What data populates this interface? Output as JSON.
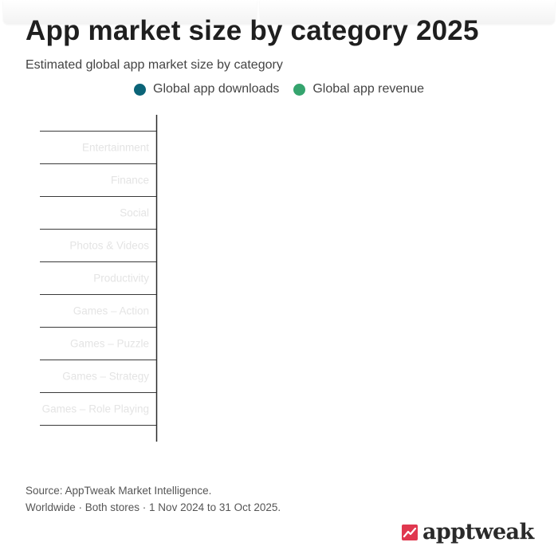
{
  "page": {
    "title": "App market size by category 2025",
    "subtitle": "Estimated global app market size by category"
  },
  "legend": [
    {
      "label": "Global app downloads",
      "color": "#0b6478"
    },
    {
      "label": "Global app revenue",
      "color": "#35a46e"
    }
  ],
  "chart_data": {
    "type": "bar",
    "orientation": "horizontal",
    "title": "App market size by category 2025",
    "subtitle": "Estimated global app market size by category",
    "categories": [
      "Entertainment",
      "Finance",
      "Social",
      "Photos & Videos",
      "Productivity",
      "Games – Action",
      "Games – Puzzle",
      "Games – Strategy",
      "Games – Role Playing"
    ],
    "series": [
      {
        "name": "Global app downloads",
        "color": "#0b6478",
        "values": [
          null,
          null,
          null,
          null,
          null,
          null,
          null,
          null,
          null
        ]
      },
      {
        "name": "Global app revenue",
        "color": "#35a46e",
        "values": [
          null,
          null,
          null,
          null,
          null,
          null,
          null,
          null,
          null
        ]
      }
    ],
    "grid": true,
    "legend_position": "top-center"
  },
  "footer": {
    "source": "Source: AppTweak Market Intelligence.",
    "scope": "Worldwide · Both stores · 1 Nov 2024 to 31 Oct 2025."
  },
  "logo": {
    "text": "apptweak",
    "color": "#e0384f"
  }
}
